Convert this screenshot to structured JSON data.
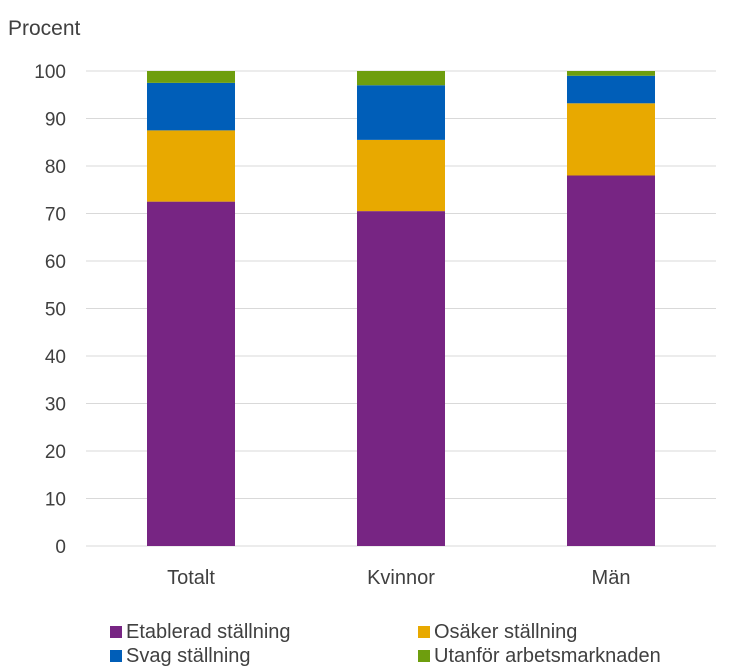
{
  "chart_data": {
    "type": "bar",
    "stacked": true,
    "ylabel": "Procent",
    "ylim": [
      0,
      100
    ],
    "yticks": [
      0,
      10,
      20,
      30,
      40,
      50,
      60,
      70,
      80,
      90,
      100
    ],
    "grid": true,
    "legend_position": "bottom",
    "categories": [
      "Totalt",
      "Kvinnor",
      "Män"
    ],
    "series": [
      {
        "name": "Etablerad ställning",
        "color": "#772583",
        "values": [
          72.5,
          70.5,
          78.0
        ]
      },
      {
        "name": "Osäker ställning",
        "color": "#E8A900",
        "values": [
          15.0,
          15.0,
          15.2
        ]
      },
      {
        "name": "Svag ställning",
        "color": "#005EB8",
        "values": [
          10.0,
          11.5,
          5.8
        ]
      },
      {
        "name": "Utanför arbetsmarknaden",
        "color": "#6E9E0E",
        "values": [
          2.5,
          3.0,
          1.0
        ]
      }
    ]
  }
}
